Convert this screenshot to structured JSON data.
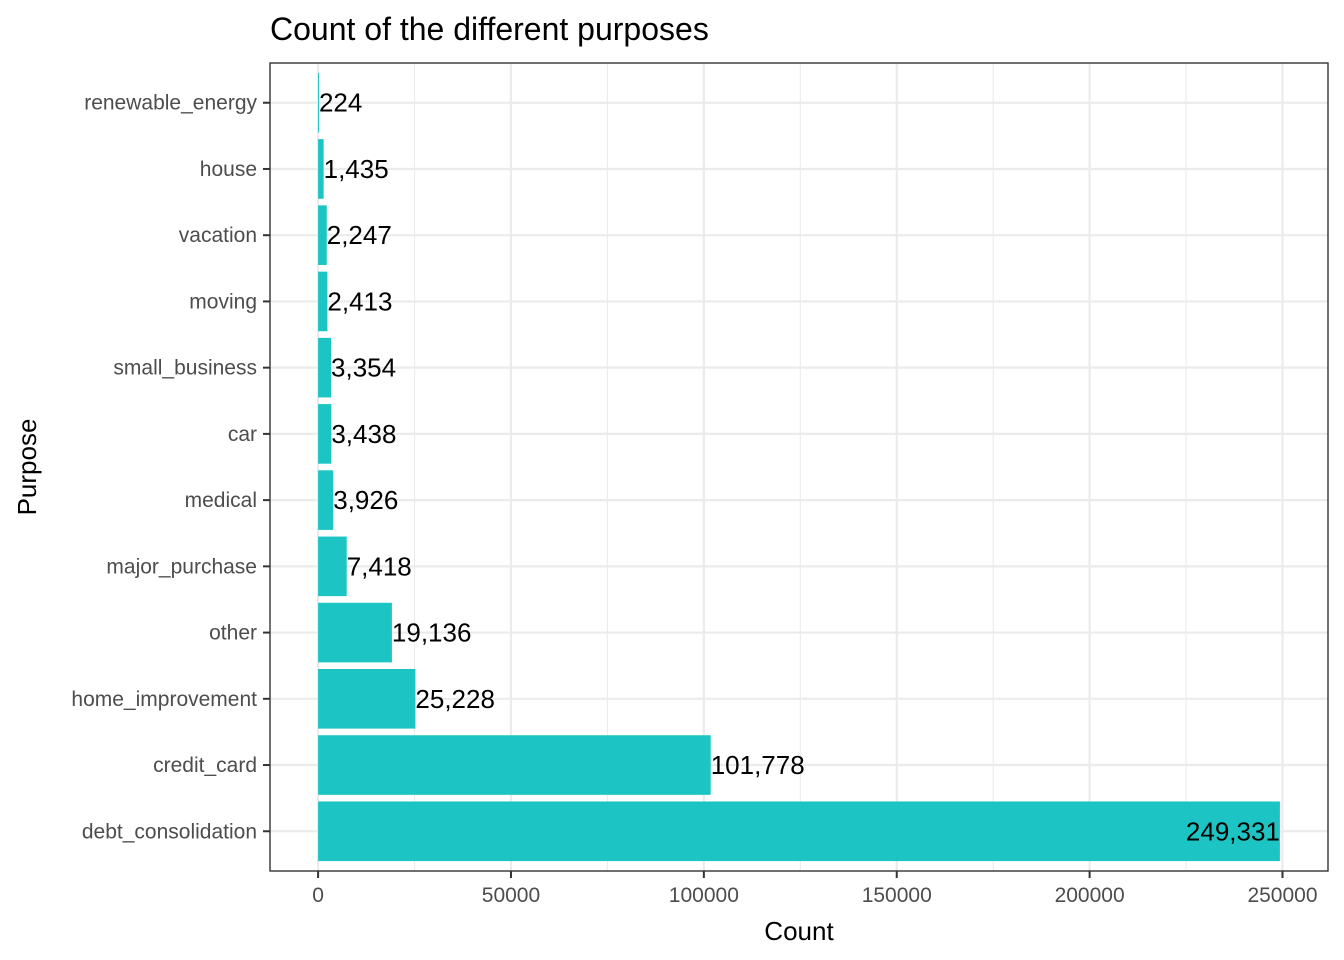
{
  "chart_data": {
    "type": "bar",
    "orientation": "horizontal",
    "title": "Count of the different purposes",
    "xlabel": "Count",
    "ylabel": "Purpose",
    "categories": [
      "debt_consolidation",
      "credit_card",
      "home_improvement",
      "other",
      "major_purchase",
      "medical",
      "car",
      "small_business",
      "moving",
      "vacation",
      "house",
      "renewable_energy"
    ],
    "values": [
      249331,
      101778,
      25228,
      19136,
      7418,
      3926,
      3438,
      3354,
      2413,
      2247,
      1435,
      224
    ],
    "value_labels": [
      "249,331",
      "101,778",
      "25,228",
      "19,136",
      "7,418",
      "3,926",
      "3,438",
      "3,354",
      "2,413",
      "2,247",
      "1,435",
      "224"
    ],
    "xticks": [
      0,
      50000,
      100000,
      150000,
      200000,
      250000
    ],
    "xtick_labels": [
      "0",
      "50000",
      "100000",
      "150000",
      "200000",
      "250000"
    ],
    "xlim": [
      -12467,
      261798
    ],
    "grid": true,
    "legend": "none",
    "colors": {
      "bar": "#1cc5c3",
      "grid": "#ebebeb",
      "panel_border": "#333333"
    }
  }
}
